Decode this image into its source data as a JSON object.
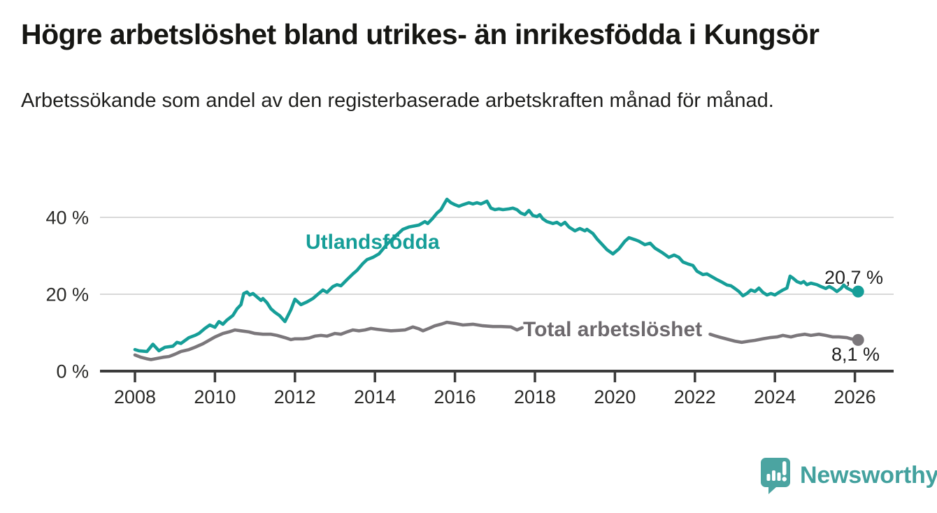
{
  "title": "Högre arbetslöshet bland utrikes- än inrikesfödda i Kungsör",
  "subtitle": "Arbetssökande som andel av den registerbaserade arbetskraften månad för månad.",
  "logo": {
    "text": "Newsworthy"
  },
  "colors": {
    "teal": "#169e98",
    "gray_line": "#7b777b",
    "gray_label": "#6d696d",
    "axis": "#3b3b3b",
    "grid": "#d9d9d9",
    "tick_label": "#2a2a28",
    "value_label": "#1f1f1f",
    "logo_teal": "#4ba4a1",
    "logo_text": "#43a19e"
  },
  "chart_data": {
    "type": "line",
    "title": "",
    "xlabel": "",
    "ylabel": "",
    "grid": true,
    "legend_position": "inline-labels",
    "x_axis": {
      "tick_labels": [
        "2008",
        "2010",
        "2012",
        "2014",
        "2016",
        "2018",
        "2020",
        "2022",
        "2024",
        "2026"
      ],
      "range": [
        2007.1,
        2027.0
      ]
    },
    "y_axis": {
      "ticks": [
        {
          "value": 0,
          "label": "0 %"
        },
        {
          "value": 20,
          "label": "20 %"
        },
        {
          "value": 40,
          "label": "40 %"
        }
      ],
      "range": [
        0,
        47
      ]
    },
    "series": [
      {
        "key": "utlandsfodda",
        "name": "Utlandsfödda",
        "color": "#169e98",
        "end_label": "20,7 %",
        "end_value": 20.7,
        "points": [
          [
            2008.0,
            5.6
          ],
          [
            2008.1,
            5.3
          ],
          [
            2008.3,
            5.1
          ],
          [
            2008.45,
            7.0
          ],
          [
            2008.6,
            5.3
          ],
          [
            2008.75,
            6.2
          ],
          [
            2008.95,
            6.5
          ],
          [
            2009.05,
            7.5
          ],
          [
            2009.15,
            7.2
          ],
          [
            2009.35,
            8.7
          ],
          [
            2009.5,
            9.3
          ],
          [
            2009.6,
            9.8
          ],
          [
            2009.75,
            11.1
          ],
          [
            2009.87,
            12.0
          ],
          [
            2010.0,
            11.4
          ],
          [
            2010.1,
            12.9
          ],
          [
            2010.2,
            12.2
          ],
          [
            2010.3,
            13.3
          ],
          [
            2010.45,
            14.5
          ],
          [
            2010.55,
            16.2
          ],
          [
            2010.65,
            17.3
          ],
          [
            2010.72,
            20.2
          ],
          [
            2010.8,
            20.6
          ],
          [
            2010.87,
            19.8
          ],
          [
            2010.95,
            20.2
          ],
          [
            2011.05,
            19.3
          ],
          [
            2011.15,
            18.4
          ],
          [
            2011.2,
            18.9
          ],
          [
            2011.3,
            17.8
          ],
          [
            2011.4,
            16.2
          ],
          [
            2011.5,
            15.3
          ],
          [
            2011.62,
            14.4
          ],
          [
            2011.75,
            12.9
          ],
          [
            2011.9,
            16.0
          ],
          [
            2012.0,
            18.7
          ],
          [
            2012.15,
            17.3
          ],
          [
            2012.3,
            18.0
          ],
          [
            2012.45,
            18.9
          ],
          [
            2012.55,
            19.8
          ],
          [
            2012.7,
            21.1
          ],
          [
            2012.8,
            20.5
          ],
          [
            2012.95,
            22.0
          ],
          [
            2013.05,
            22.5
          ],
          [
            2013.15,
            22.2
          ],
          [
            2013.3,
            23.8
          ],
          [
            2013.45,
            25.3
          ],
          [
            2013.55,
            26.2
          ],
          [
            2013.7,
            28.0
          ],
          [
            2013.8,
            29.0
          ],
          [
            2013.95,
            29.6
          ],
          [
            2014.1,
            30.5
          ],
          [
            2014.3,
            33.0
          ],
          [
            2014.5,
            35.0
          ],
          [
            2014.7,
            36.9
          ],
          [
            2014.85,
            37.5
          ],
          [
            2015.0,
            37.8
          ],
          [
            2015.1,
            38.0
          ],
          [
            2015.25,
            38.9
          ],
          [
            2015.32,
            38.4
          ],
          [
            2015.45,
            39.8
          ],
          [
            2015.55,
            41.1
          ],
          [
            2015.65,
            42.0
          ],
          [
            2015.72,
            43.3
          ],
          [
            2015.8,
            44.7
          ],
          [
            2015.9,
            43.8
          ],
          [
            2016.0,
            43.3
          ],
          [
            2016.1,
            42.9
          ],
          [
            2016.2,
            43.3
          ],
          [
            2016.35,
            43.8
          ],
          [
            2016.45,
            43.5
          ],
          [
            2016.55,
            43.8
          ],
          [
            2016.65,
            43.5
          ],
          [
            2016.8,
            44.2
          ],
          [
            2016.9,
            42.4
          ],
          [
            2017.0,
            42.0
          ],
          [
            2017.1,
            42.2
          ],
          [
            2017.2,
            42.0
          ],
          [
            2017.35,
            42.2
          ],
          [
            2017.45,
            42.4
          ],
          [
            2017.55,
            42.0
          ],
          [
            2017.65,
            41.1
          ],
          [
            2017.75,
            40.7
          ],
          [
            2017.85,
            41.8
          ],
          [
            2017.95,
            40.5
          ],
          [
            2018.05,
            40.2
          ],
          [
            2018.12,
            40.7
          ],
          [
            2018.2,
            39.6
          ],
          [
            2018.3,
            38.9
          ],
          [
            2018.45,
            38.4
          ],
          [
            2018.55,
            38.7
          ],
          [
            2018.65,
            38.0
          ],
          [
            2018.75,
            38.7
          ],
          [
            2018.85,
            37.5
          ],
          [
            2019.0,
            36.5
          ],
          [
            2019.12,
            37.1
          ],
          [
            2019.25,
            36.5
          ],
          [
            2019.3,
            36.9
          ],
          [
            2019.45,
            35.8
          ],
          [
            2019.55,
            34.4
          ],
          [
            2019.65,
            33.3
          ],
          [
            2019.8,
            31.6
          ],
          [
            2019.95,
            30.5
          ],
          [
            2020.1,
            31.8
          ],
          [
            2020.25,
            33.8
          ],
          [
            2020.35,
            34.7
          ],
          [
            2020.5,
            34.2
          ],
          [
            2020.6,
            33.8
          ],
          [
            2020.75,
            32.9
          ],
          [
            2020.88,
            33.3
          ],
          [
            2021.0,
            32.0
          ],
          [
            2021.2,
            30.7
          ],
          [
            2021.35,
            29.6
          ],
          [
            2021.48,
            30.2
          ],
          [
            2021.6,
            29.6
          ],
          [
            2021.7,
            28.4
          ],
          [
            2021.85,
            27.8
          ],
          [
            2021.95,
            27.5
          ],
          [
            2022.05,
            26.0
          ],
          [
            2022.2,
            25.1
          ],
          [
            2022.3,
            25.3
          ],
          [
            2022.45,
            24.4
          ],
          [
            2022.55,
            23.8
          ],
          [
            2022.65,
            23.3
          ],
          [
            2022.8,
            22.4
          ],
          [
            2022.9,
            22.2
          ],
          [
            2023.0,
            21.5
          ],
          [
            2023.1,
            20.7
          ],
          [
            2023.2,
            19.6
          ],
          [
            2023.3,
            20.2
          ],
          [
            2023.4,
            21.1
          ],
          [
            2023.5,
            20.7
          ],
          [
            2023.6,
            21.6
          ],
          [
            2023.7,
            20.5
          ],
          [
            2023.8,
            19.8
          ],
          [
            2023.9,
            20.2
          ],
          [
            2024.0,
            19.8
          ],
          [
            2024.1,
            20.5
          ],
          [
            2024.2,
            21.1
          ],
          [
            2024.3,
            21.6
          ],
          [
            2024.38,
            24.7
          ],
          [
            2024.45,
            24.2
          ],
          [
            2024.55,
            23.3
          ],
          [
            2024.65,
            22.9
          ],
          [
            2024.72,
            23.3
          ],
          [
            2024.8,
            22.5
          ],
          [
            2024.9,
            22.9
          ],
          [
            2025.05,
            22.5
          ],
          [
            2025.15,
            22.0
          ],
          [
            2025.27,
            21.5
          ],
          [
            2025.36,
            22.0
          ],
          [
            2025.45,
            21.5
          ],
          [
            2025.55,
            20.7
          ],
          [
            2025.65,
            21.5
          ],
          [
            2025.72,
            22.4
          ],
          [
            2025.8,
            21.6
          ],
          [
            2025.9,
            21.1
          ],
          [
            2026.0,
            20.5
          ],
          [
            2026.08,
            20.7
          ]
        ]
      },
      {
        "key": "total",
        "name": "Total arbetslöshet",
        "color": "#7b777b",
        "label_color": "#6d696d",
        "end_label": "8,1 %",
        "end_value": 8.1,
        "points": [
          [
            2008.0,
            4.2
          ],
          [
            2008.15,
            3.6
          ],
          [
            2008.3,
            3.2
          ],
          [
            2008.4,
            3.0
          ],
          [
            2008.55,
            3.3
          ],
          [
            2008.7,
            3.6
          ],
          [
            2008.85,
            3.8
          ],
          [
            2009.0,
            4.4
          ],
          [
            2009.15,
            5.1
          ],
          [
            2009.35,
            5.6
          ],
          [
            2009.5,
            6.2
          ],
          [
            2009.7,
            7.1
          ],
          [
            2009.85,
            8.0
          ],
          [
            2010.0,
            8.9
          ],
          [
            2010.2,
            9.8
          ],
          [
            2010.35,
            10.2
          ],
          [
            2010.5,
            10.7
          ],
          [
            2010.65,
            10.5
          ],
          [
            2010.85,
            10.2
          ],
          [
            2011.0,
            9.8
          ],
          [
            2011.2,
            9.6
          ],
          [
            2011.4,
            9.6
          ],
          [
            2011.55,
            9.3
          ],
          [
            2011.75,
            8.7
          ],
          [
            2011.9,
            8.2
          ],
          [
            2012.0,
            8.4
          ],
          [
            2012.2,
            8.4
          ],
          [
            2012.35,
            8.6
          ],
          [
            2012.5,
            9.1
          ],
          [
            2012.65,
            9.3
          ],
          [
            2012.8,
            9.1
          ],
          [
            2013.0,
            9.8
          ],
          [
            2013.15,
            9.6
          ],
          [
            2013.3,
            10.2
          ],
          [
            2013.45,
            10.7
          ],
          [
            2013.6,
            10.5
          ],
          [
            2013.75,
            10.7
          ],
          [
            2013.9,
            11.1
          ],
          [
            2014.05,
            10.9
          ],
          [
            2014.2,
            10.7
          ],
          [
            2014.4,
            10.5
          ],
          [
            2014.6,
            10.6
          ],
          [
            2014.75,
            10.7
          ],
          [
            2014.95,
            11.5
          ],
          [
            2015.1,
            11.0
          ],
          [
            2015.2,
            10.5
          ],
          [
            2015.35,
            11.1
          ],
          [
            2015.5,
            11.8
          ],
          [
            2015.65,
            12.2
          ],
          [
            2015.8,
            12.7
          ],
          [
            2016.0,
            12.4
          ],
          [
            2016.2,
            12.0
          ],
          [
            2016.45,
            12.2
          ],
          [
            2016.7,
            11.8
          ],
          [
            2016.95,
            11.6
          ],
          [
            2017.15,
            11.6
          ],
          [
            2017.4,
            11.5
          ],
          [
            2017.55,
            10.7
          ],
          [
            2017.68,
            11.3
          ],
          [
            2022.38,
            9.6
          ],
          [
            2022.5,
            9.2
          ],
          [
            2022.6,
            8.9
          ],
          [
            2022.85,
            8.2
          ],
          [
            2023.0,
            7.8
          ],
          [
            2023.17,
            7.5
          ],
          [
            2023.35,
            7.8
          ],
          [
            2023.5,
            8.0
          ],
          [
            2023.7,
            8.4
          ],
          [
            2023.87,
            8.7
          ],
          [
            2024.05,
            8.9
          ],
          [
            2024.2,
            9.3
          ],
          [
            2024.4,
            8.9
          ],
          [
            2024.55,
            9.3
          ],
          [
            2024.75,
            9.6
          ],
          [
            2024.9,
            9.3
          ],
          [
            2025.1,
            9.6
          ],
          [
            2025.27,
            9.3
          ],
          [
            2025.45,
            8.9
          ],
          [
            2025.6,
            8.9
          ],
          [
            2025.8,
            8.7
          ],
          [
            2025.9,
            8.4
          ],
          [
            2026.08,
            8.1
          ]
        ]
      }
    ]
  }
}
